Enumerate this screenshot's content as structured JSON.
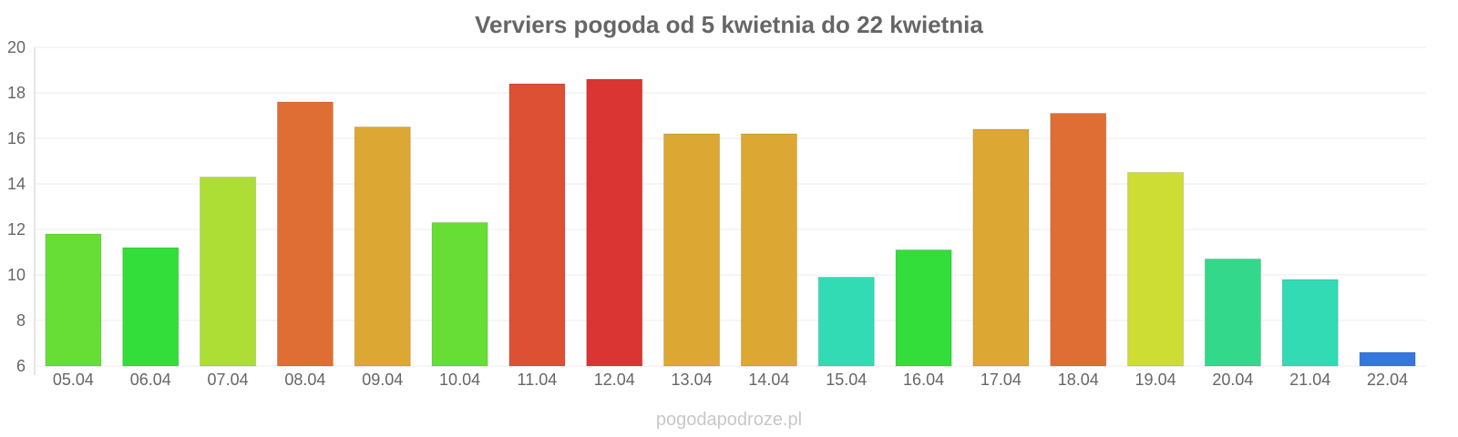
{
  "chart_data": {
    "type": "bar",
    "title": "Verviers pogoda od 5 kwietnia do 22 kwietnia",
    "xlabel": "",
    "ylabel": "",
    "ylim": [
      6,
      20
    ],
    "yticks": [
      6,
      8,
      10,
      12,
      14,
      16,
      18,
      20
    ],
    "grid": true,
    "legend": "none",
    "categories": [
      "05.04",
      "06.04",
      "07.04",
      "08.04",
      "09.04",
      "10.04",
      "11.04",
      "12.04",
      "13.04",
      "14.04",
      "15.04",
      "16.04",
      "17.04",
      "18.04",
      "19.04",
      "20.04",
      "21.04",
      "22.04"
    ],
    "values": [
      11.8,
      11.2,
      14.3,
      17.6,
      16.5,
      12.3,
      18.4,
      18.6,
      16.2,
      16.2,
      9.9,
      11.1,
      16.4,
      17.1,
      14.5,
      10.7,
      9.8,
      6.6
    ],
    "colors": [
      "#66de36",
      "#33dd3a",
      "#acde36",
      "#df6e34",
      "#dda733",
      "#66de36",
      "#dd5034",
      "#db3533",
      "#dda733",
      "#dda733",
      "#33dbb5",
      "#33dd3a",
      "#dda733",
      "#df6e34",
      "#cedd33",
      "#33d88a",
      "#33dbb5",
      "#3777dd"
    ]
  },
  "watermark": "pogodapodroze.pl"
}
